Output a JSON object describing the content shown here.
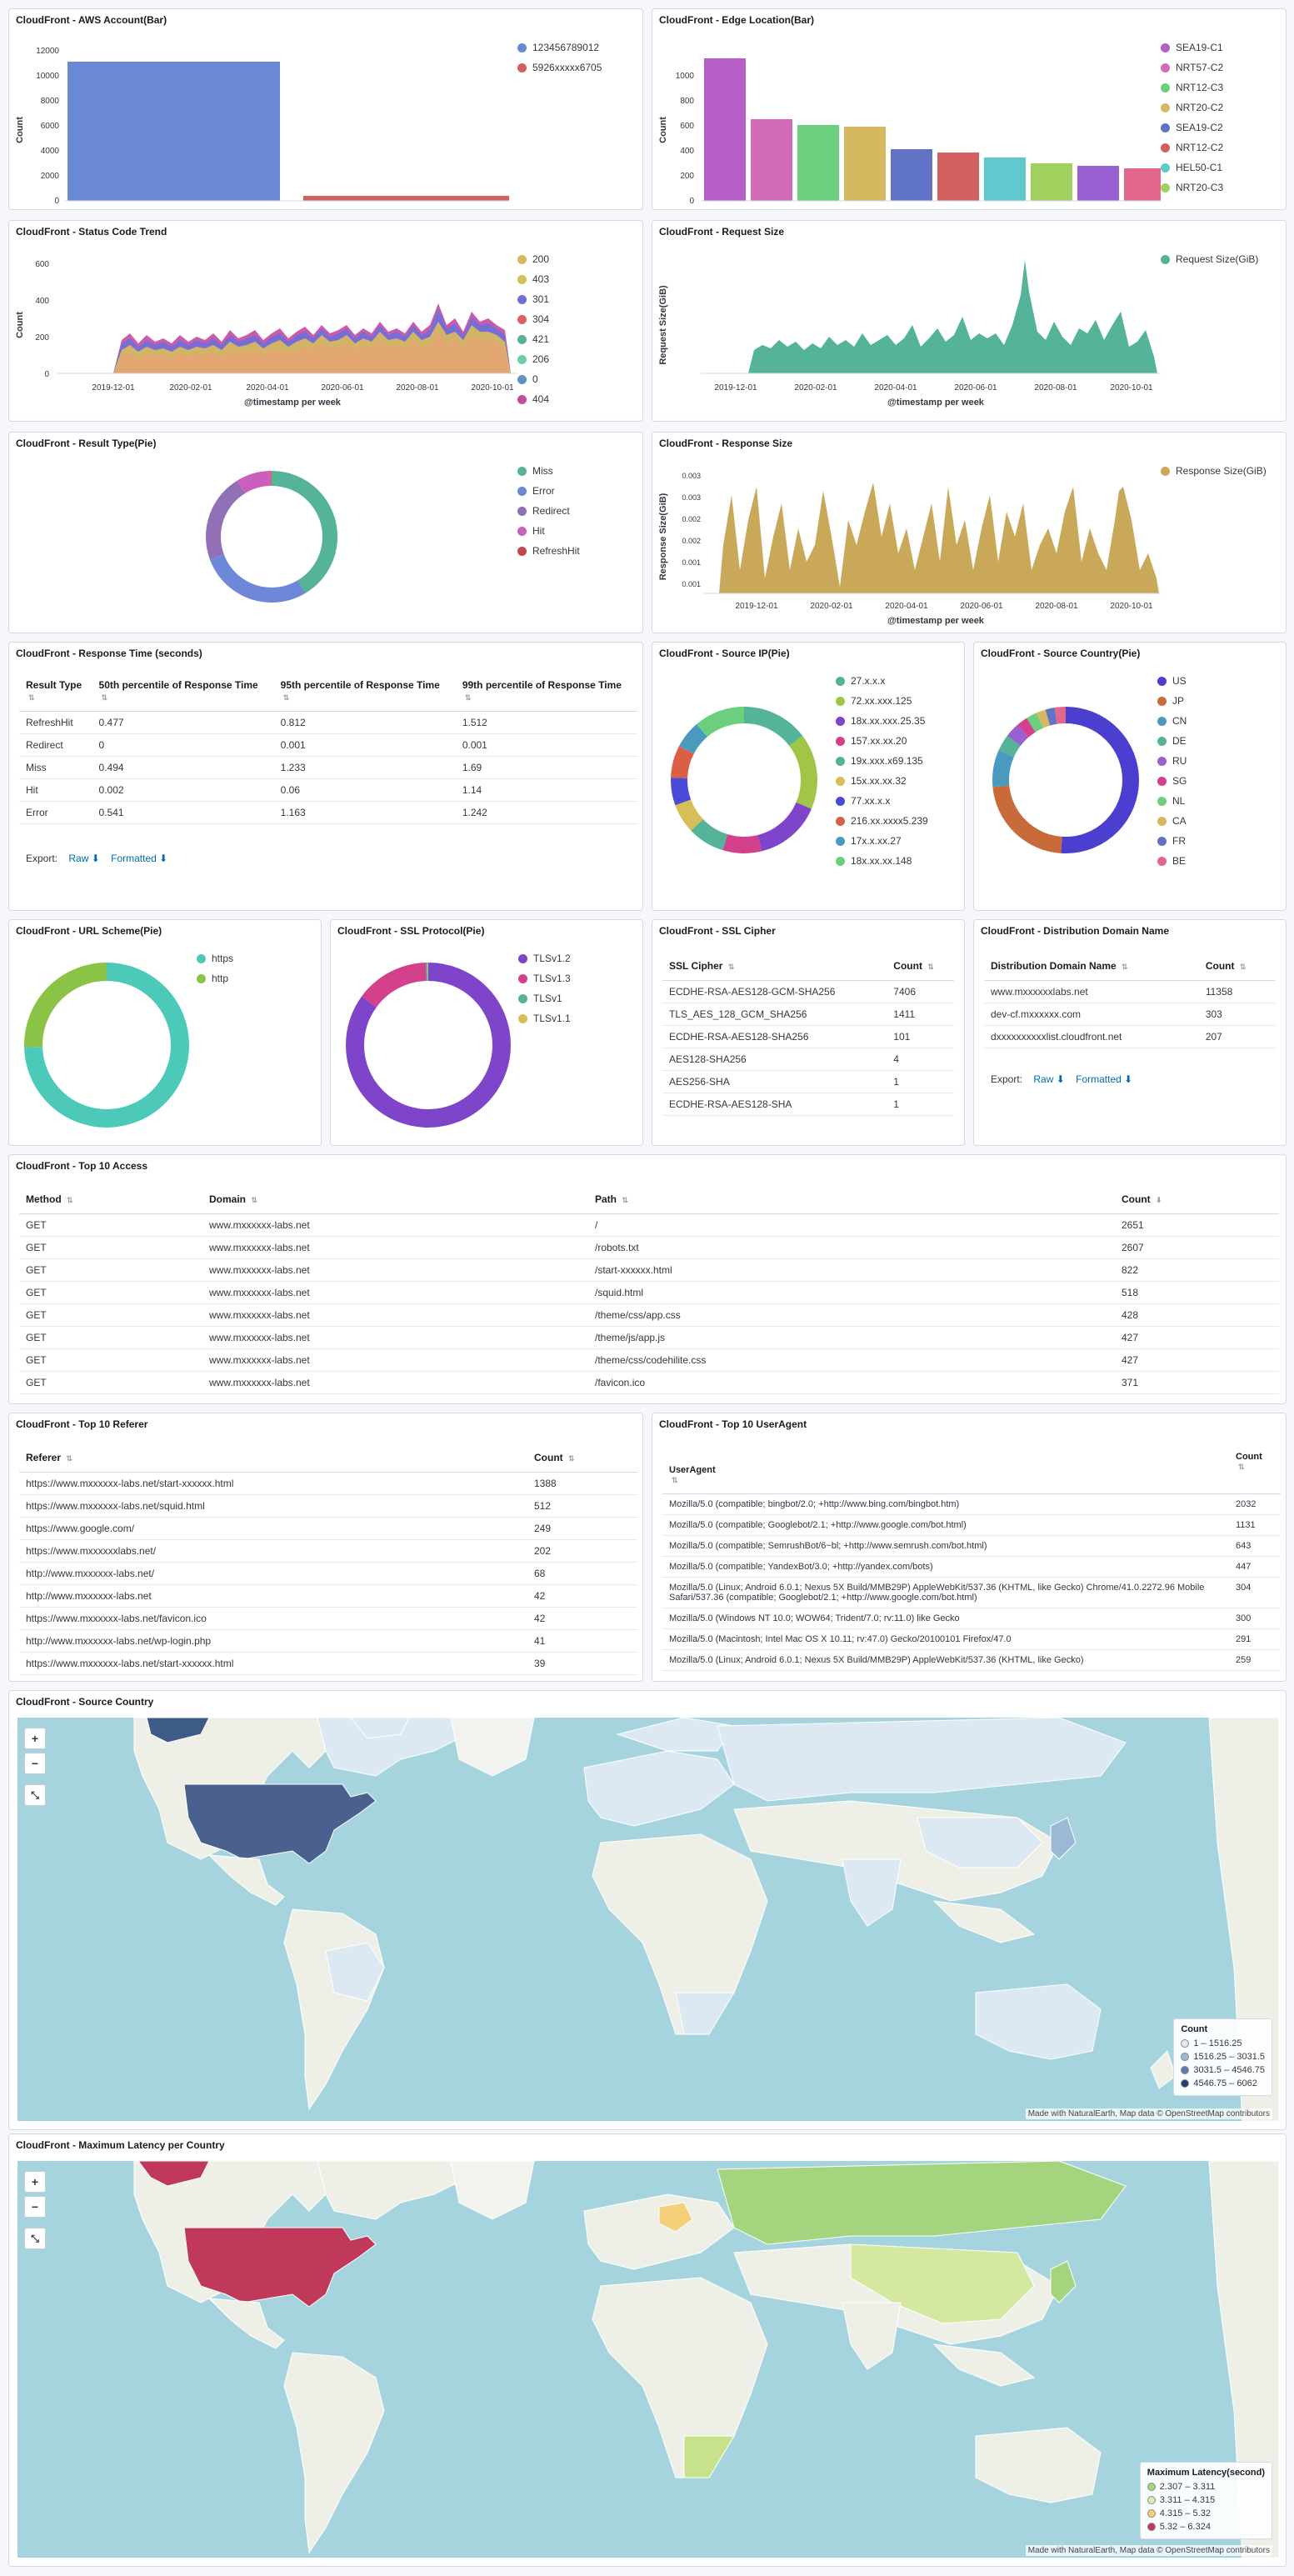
{
  "panels": {
    "aws_account": {
      "title": "CloudFront - AWS Account(Bar)",
      "ylabel": "Count",
      "yticks": [
        "0",
        "2000",
        "4000",
        "6000",
        "8000",
        "10000",
        "12000"
      ],
      "legend": [
        {
          "label": "123456789012",
          "color": "#6092c0"
        },
        {
          "label": "5926xxxxx6705",
          "color": "#d36086"
        }
      ]
    },
    "edge_location": {
      "title": "CloudFront - Edge Location(Bar)",
      "ylabel": "Count",
      "yticks": [
        "0",
        "200",
        "400",
        "600",
        "800",
        "1000"
      ],
      "legend": [
        {
          "label": "SEA19-C1",
          "color": "#ca8eae"
        },
        {
          "label": "NRT57-C2",
          "color": "#d36086"
        },
        {
          "label": "NRT12-C3",
          "color": "#54b399"
        },
        {
          "label": "NRT20-C2",
          "color": "#d6bf57"
        },
        {
          "label": "SEA19-C2",
          "color": "#6092c0"
        },
        {
          "label": "NRT12-C2",
          "color": "#da8b45"
        },
        {
          "label": "HEL50-C1",
          "color": "#9170b8"
        },
        {
          "label": "NRT20-C3",
          "color": "#b0c9e0"
        }
      ]
    },
    "status_code": {
      "title": "CloudFront - Status Code Trend",
      "ylabel": "Count",
      "xlabel": "@timestamp per week",
      "yticks": [
        "0",
        "200",
        "400",
        "600"
      ],
      "xticks": [
        "2019-12-01",
        "2020-02-01",
        "2020-04-01",
        "2020-06-01",
        "2020-08-01",
        "2020-10-01"
      ],
      "legend": [
        {
          "label": "200",
          "color": "#d6bf57"
        },
        {
          "label": "403",
          "color": "#d6bf57"
        },
        {
          "label": "301",
          "color": "#6f87d8"
        },
        {
          "label": "304",
          "color": "#d36086"
        },
        {
          "label": "421",
          "color": "#54b399"
        },
        {
          "label": "206",
          "color": "#54b399"
        },
        {
          "label": "0",
          "color": "#6092c0"
        },
        {
          "label": "404",
          "color": "#d36086"
        }
      ]
    },
    "request_size": {
      "title": "CloudFront - Request Size",
      "ylabel": "Request Size(GiB)",
      "xlabel": "@timestamp per week",
      "xticks": [
        "2019-12-01",
        "2020-02-01",
        "2020-04-01",
        "2020-06-01",
        "2020-08-01",
        "2020-10-01"
      ],
      "legend": [
        {
          "label": "Request Size(GiB)",
          "color": "#54b399"
        }
      ]
    },
    "result_type": {
      "title": "CloudFront - Result Type(Pie)",
      "legend": [
        {
          "label": "Miss",
          "color": "#54b399"
        },
        {
          "label": "Error",
          "color": "#6092c0"
        },
        {
          "label": "Redirect",
          "color": "#9170b8"
        },
        {
          "label": "Hit",
          "color": "#ca8eae"
        },
        {
          "label": "RefreshHit",
          "color": "#d36086"
        }
      ]
    },
    "response_size": {
      "title": "CloudFront - Response Size",
      "ylabel": "Response Size(GiB)",
      "xlabel": "@timestamp per week",
      "yticks": [
        "0.001",
        "0.001",
        "0.002",
        "0.002",
        "0.003",
        "0.003"
      ],
      "xticks": [
        "2019-12-01",
        "2020-02-01",
        "2020-04-01",
        "2020-06-01",
        "2020-08-01",
        "2020-10-01"
      ],
      "legend": [
        {
          "label": "Response Size(GiB)",
          "color": "#d6bf57"
        }
      ]
    },
    "response_time": {
      "title": "CloudFront - Response Time (seconds)",
      "columns": [
        "Result Type",
        "50th percentile of Response Time",
        "95th percentile of Response Time",
        "99th percentile of Response Time"
      ],
      "rows": [
        [
          "RefreshHit",
          "0.477",
          "0.812",
          "1.512"
        ],
        [
          "Redirect",
          "0",
          "0.001",
          "0.001"
        ],
        [
          "Miss",
          "0.494",
          "1.233",
          "1.69"
        ],
        [
          "Hit",
          "0.002",
          "0.06",
          "1.14"
        ],
        [
          "Error",
          "0.541",
          "1.163",
          "1.242"
        ]
      ],
      "export_label": "Export:",
      "raw_label": "Raw",
      "formatted_label": "Formatted"
    },
    "source_ip": {
      "title": "CloudFront - Source IP(Pie)",
      "legend": [
        {
          "label": "27.x.x.x",
          "color": "#54b399"
        },
        {
          "label": "72.xx.xxx.125",
          "color": "#a0c547"
        },
        {
          "label": "18x.xx.xxx.25.35",
          "color": "#9170b8"
        },
        {
          "label": "157.xx.xx.20",
          "color": "#d36086"
        },
        {
          "label": "19x.xxx.x69.135",
          "color": "#54b399"
        },
        {
          "label": "15x.xx.xx.32",
          "color": "#d6bf57"
        },
        {
          "label": "77.xx.x.x",
          "color": "#6f87d8"
        },
        {
          "label": "216.xx.xxxx5.239",
          "color": "#da8b45"
        },
        {
          "label": "17x.x.xx.27",
          "color": "#6092c0"
        },
        {
          "label": "18x.xx.xx.148",
          "color": "#54b399"
        }
      ]
    },
    "source_country": {
      "title": "CloudFront - Source Country(Pie)",
      "legend": [
        {
          "label": "US",
          "color": "#6f4fd0"
        },
        {
          "label": "JP",
          "color": "#da8b45"
        },
        {
          "label": "CN",
          "color": "#6092c0"
        },
        {
          "label": "DE",
          "color": "#54b399"
        },
        {
          "label": "RU",
          "color": "#9170b8"
        },
        {
          "label": "SG",
          "color": "#d36086"
        },
        {
          "label": "NL",
          "color": "#54b399"
        },
        {
          "label": "CA",
          "color": "#da8b45"
        },
        {
          "label": "FR",
          "color": "#6092c0"
        },
        {
          "label": "BE",
          "color": "#d36086"
        }
      ]
    },
    "url_scheme": {
      "title": "CloudFront - URL Scheme(Pie)",
      "legend": [
        {
          "label": "https",
          "color": "#4dc9b9"
        },
        {
          "label": "http",
          "color": "#8ac346"
        }
      ]
    },
    "ssl_protocol": {
      "title": "CloudFront - SSL Protocol(Pie)",
      "legend": [
        {
          "label": "TLSv1.2",
          "color": "#7e44c9"
        },
        {
          "label": "TLSv1.3",
          "color": "#d36086"
        },
        {
          "label": "TLSv1",
          "color": "#54b399"
        },
        {
          "label": "TLSv1.1",
          "color": "#d6bf57"
        }
      ]
    },
    "ssl_cipher": {
      "title": "CloudFront - SSL Cipher",
      "columns": [
        "SSL Cipher",
        "Count"
      ],
      "rows": [
        [
          "ECDHE-RSA-AES128-GCM-SHA256",
          "7406"
        ],
        [
          "TLS_AES_128_GCM_SHA256",
          "1411"
        ],
        [
          "ECDHE-RSA-AES128-SHA256",
          "101"
        ],
        [
          "AES128-SHA256",
          "4"
        ],
        [
          "AES256-SHA",
          "1"
        ],
        [
          "ECDHE-RSA-AES128-SHA",
          "1"
        ]
      ]
    },
    "distribution": {
      "title": "CloudFront - Distribution Domain Name",
      "columns": [
        "Distribution Domain Name",
        "Count"
      ],
      "rows": [
        [
          "www.mxxxxxxlabs.net",
          "11358"
        ],
        [
          "dev-cf.mxxxxxx.com",
          "303"
        ],
        [
          "dxxxxxxxxxxlist.cloudfront.net",
          "207"
        ]
      ],
      "export_label": "Export:",
      "raw_label": "Raw",
      "formatted_label": "Formatted"
    },
    "top_access": {
      "title": "CloudFront - Top 10 Access",
      "columns": [
        "Method",
        "Domain",
        "Path",
        "Count"
      ],
      "rows": [
        [
          "GET",
          "www.mxxxxxx-labs.net",
          "/",
          "2651"
        ],
        [
          "GET",
          "www.mxxxxxx-labs.net",
          "/robots.txt",
          "2607"
        ],
        [
          "GET",
          "www.mxxxxxx-labs.net",
          "/start-xxxxxx.html",
          "822"
        ],
        [
          "GET",
          "www.mxxxxxx-labs.net",
          "/squid.html",
          "518"
        ],
        [
          "GET",
          "www.mxxxxxx-labs.net",
          "/theme/css/app.css",
          "428"
        ],
        [
          "GET",
          "www.mxxxxxx-labs.net",
          "/theme/js/app.js",
          "427"
        ],
        [
          "GET",
          "www.mxxxxxx-labs.net",
          "/theme/css/codehilite.css",
          "427"
        ],
        [
          "GET",
          "www.mxxxxxx-labs.net",
          "/favicon.ico",
          "371"
        ]
      ]
    },
    "top_referer": {
      "title": "CloudFront - Top 10 Referer",
      "columns": [
        "Referer",
        "Count"
      ],
      "rows": [
        [
          "https://www.mxxxxxx-labs.net/start-xxxxxx.html",
          "1388"
        ],
        [
          "https://www.mxxxxxx-labs.net/squid.html",
          "512"
        ],
        [
          "https://www.google.com/",
          "249"
        ],
        [
          "https://www.mxxxxxxlabs.net/",
          "202"
        ],
        [
          "http://www.mxxxxxx-labs.net/",
          "68"
        ],
        [
          "http://www.mxxxxxx-labs.net",
          "42"
        ],
        [
          "https://www.mxxxxxx-labs.net/favicon.ico",
          "42"
        ],
        [
          "http://www.mxxxxxx-labs.net/wp-login.php",
          "41"
        ],
        [
          "https://www.mxxxxxx-labs.net/start-xxxxxx.html",
          "39"
        ]
      ]
    },
    "top_useragent": {
      "title": "CloudFront - Top 10 UserAgent",
      "columns": [
        "UserAgent",
        "Count"
      ],
      "rows": [
        [
          "Mozilla/5.0 (compatible; bingbot/2.0; +http://www.bing.com/bingbot.htm)",
          "2032"
        ],
        [
          "Mozilla/5.0 (compatible; Googlebot/2.1; +http://www.google.com/bot.html)",
          "1131"
        ],
        [
          "Mozilla/5.0 (compatible; SemrushBot/6~bl; +http://www.semrush.com/bot.html)",
          "643"
        ],
        [
          "Mozilla/5.0 (compatible; YandexBot/3.0; +http://yandex.com/bots)",
          "447"
        ],
        [
          "Mozilla/5.0 (Linux; Android 6.0.1; Nexus 5X Build/MMB29P) AppleWebKit/537.36 (KHTML, like Gecko) Chrome/41.0.2272.96 Mobile Safari/537.36 (compatible; Googlebot/2.1; +http://www.google.com/bot.html)",
          "304"
        ],
        [
          "Mozilla/5.0 (Windows NT 10.0; WOW64; Trident/7.0; rv:11.0) like Gecko",
          "300"
        ],
        [
          "Mozilla/5.0 (Macintosh; Intel Mac OS X 10.11; rv:47.0) Gecko/20100101 Firefox/47.0",
          "291"
        ],
        [
          "Mozilla/5.0 (Linux; Android 6.0.1; Nexus 5X Build/MMB29P) AppleWebKit/537.36 (KHTML, like Gecko)",
          "259"
        ]
      ]
    },
    "map_country": {
      "title": "CloudFront - Source Country",
      "legend_title": "Count",
      "legend": [
        {
          "label": "1 – 1516.25",
          "color": "#dce8f2"
        },
        {
          "label": "1516.25 – 3031.5",
          "color": "#9cb8d6"
        },
        {
          "label": "3031.5 – 4546.75",
          "color": "#5a7fb0"
        },
        {
          "label": "4546.75 – 6062",
          "color": "#23406e"
        }
      ],
      "attribution": "Made with NaturalEarth, Map data © OpenStreetMap contributors"
    },
    "map_latency": {
      "title": "CloudFront - Maximum Latency per Country",
      "legend_title": "Maximum Latency(second)",
      "legend": [
        {
          "label": "2.307 – 3.311",
          "color": "#a5d47f"
        },
        {
          "label": "3.311 – 4.315",
          "color": "#e3ecb0"
        },
        {
          "label": "4.315 – 5.32",
          "color": "#f6cf7a"
        },
        {
          "label": "5.32 – 6.324",
          "color": "#c0395a"
        }
      ],
      "attribution": "Made with NaturalEarth, Map data © OpenStreetMap contributors"
    }
  },
  "icons": {
    "zoom_in": "+",
    "zoom_out": "−",
    "fit": "⤡",
    "download": "⬇",
    "sort": "⇅"
  }
}
